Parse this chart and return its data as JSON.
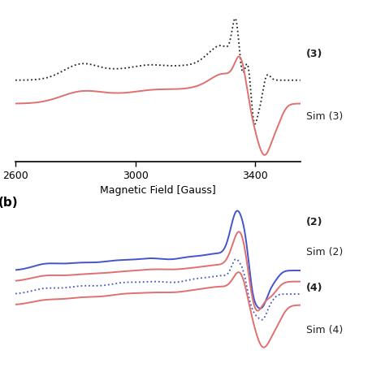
{
  "x_min": 2600,
  "x_max": 3550,
  "xlabel": "Magnetic Field [Gauss]",
  "xticks": [
    2600,
    3000,
    3400
  ],
  "top_label_a": "(3)",
  "top_label_sim": "Sim (3)",
  "bottom_label_b": "(b)",
  "bottom_labels": [
    "(2)",
    "Sim (2)",
    "(4)",
    "Sim (4)"
  ],
  "color_black": "#222222",
  "color_pink": "#e07070",
  "color_blue": "#4455cc",
  "lw_solid": 1.4,
  "lw_dot": 1.3
}
